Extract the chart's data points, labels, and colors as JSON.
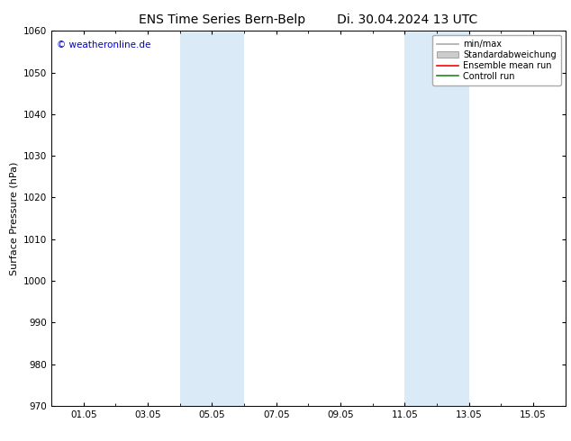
{
  "title_left": "ENS Time Series Bern-Belp",
  "title_right": "Di. 30.04.2024 13 UTC",
  "ylabel": "Surface Pressure (hPa)",
  "ylim": [
    970,
    1060
  ],
  "yticks": [
    970,
    980,
    990,
    1000,
    1010,
    1020,
    1030,
    1040,
    1050,
    1060
  ],
  "xtick_labels": [
    "01.05",
    "03.05",
    "05.05",
    "07.05",
    "09.05",
    "11.05",
    "13.05",
    "15.05"
  ],
  "xtick_positions": [
    1,
    3,
    5,
    7,
    9,
    11,
    13,
    15
  ],
  "xlim": [
    0,
    16
  ],
  "background_color": "#ffffff",
  "plot_bg_color": "#ffffff",
  "shaded_regions": [
    {
      "xmin": 4,
      "xmax": 6,
      "color": "#daeaf7"
    },
    {
      "xmin": 11,
      "xmax": 13,
      "color": "#daeaf7"
    }
  ],
  "watermark_text": "© weatheronline.de",
  "watermark_color": "#0000cc",
  "legend_items": [
    {
      "label": "min/max",
      "color": "#aaaaaa",
      "style": "line"
    },
    {
      "label": "Standardabweichung",
      "color": "#cccccc",
      "style": "rect"
    },
    {
      "label": "Ensemble mean run",
      "color": "#ff0000",
      "style": "line"
    },
    {
      "label": "Controll run",
      "color": "#228822",
      "style": "line"
    }
  ],
  "title_fontsize": 10,
  "ylabel_fontsize": 8,
  "tick_fontsize": 7.5,
  "watermark_fontsize": 7.5,
  "legend_fontsize": 7
}
